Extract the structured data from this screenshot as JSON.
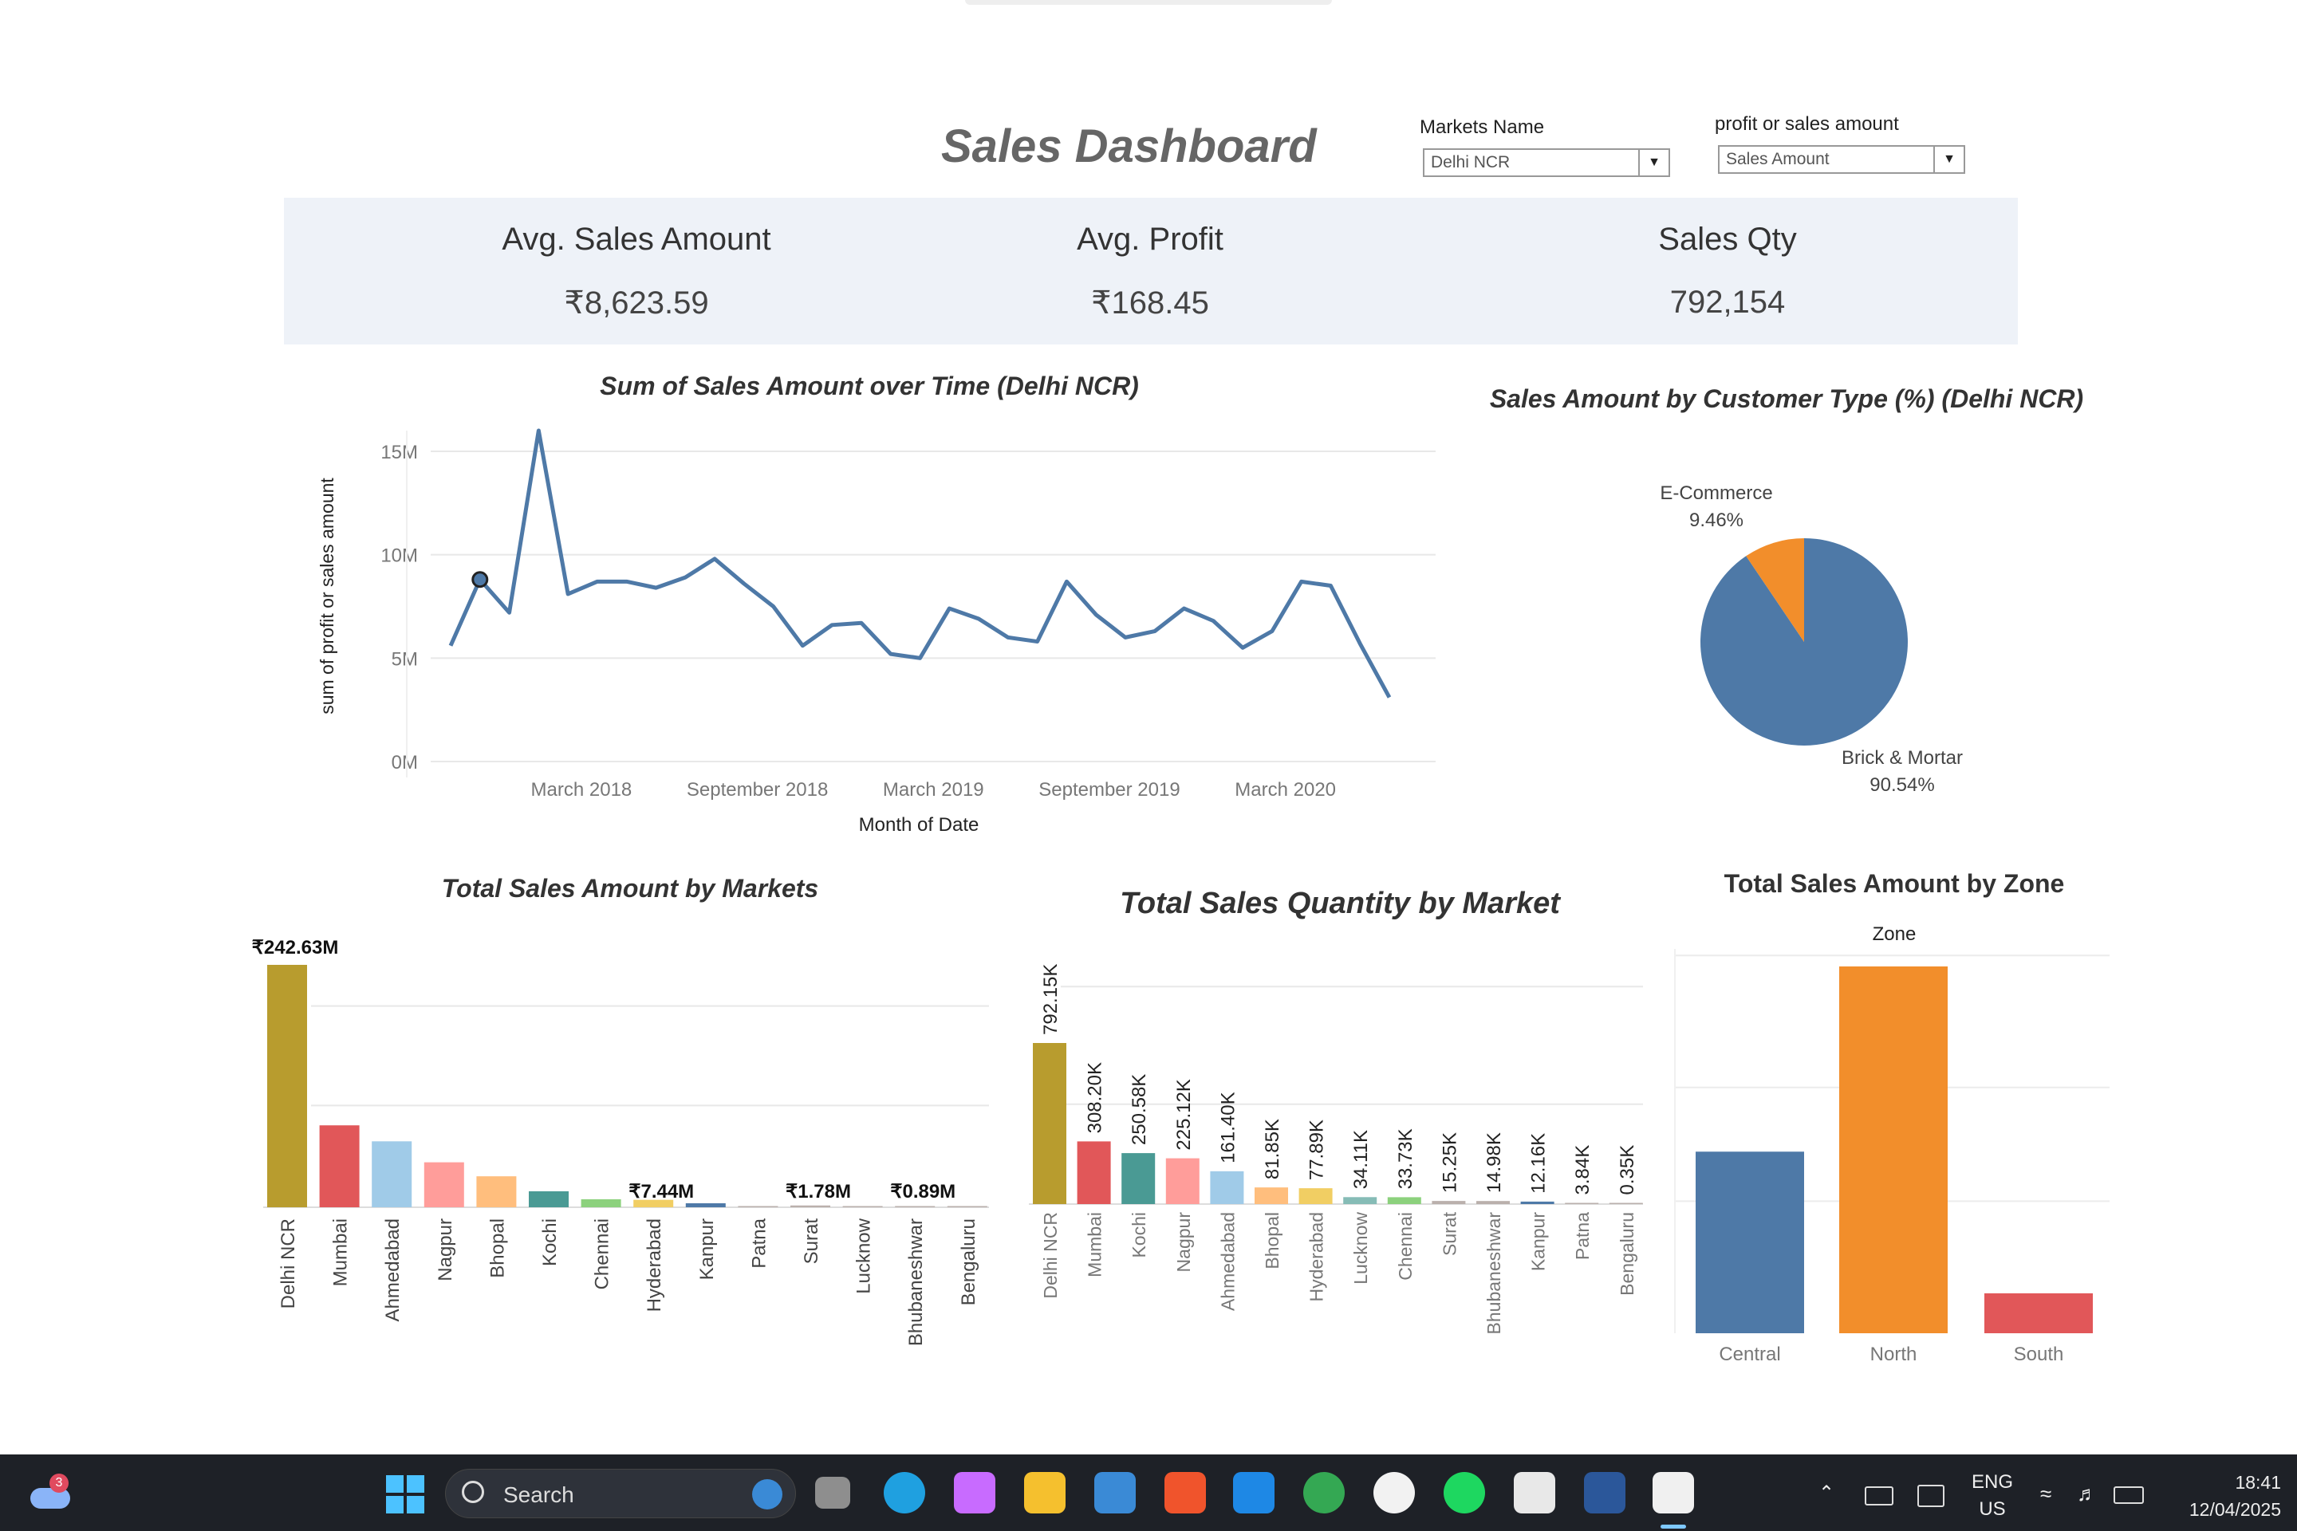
{
  "header": {
    "title": "Sales Dashboard",
    "markets_filter": {
      "label": "Markets Name",
      "value": "Delhi NCR"
    },
    "metric_filter": {
      "label": "profit or sales amount",
      "value": "Sales Amount"
    }
  },
  "kpis": [
    {
      "label": "Avg. Sales Amount",
      "value": "₹8,623.59"
    },
    {
      "label": "Avg. Profit",
      "value": "₹168.45"
    },
    {
      "label": "Sales Qty",
      "value": "792,154"
    }
  ],
  "colors": {
    "blue": "#4e79a7",
    "orange": "#f28e2b",
    "red": "#e15759",
    "teal": "#4a9a94",
    "olive": "#b89c2e",
    "lightblue": "#a0cbe8",
    "pink": "#ff9d9a",
    "lightorange": "#ffbe7d",
    "green": "#8cd17d",
    "yellow": "#f1ce63",
    "gray": "#bab0ac"
  },
  "chart_data": [
    {
      "type": "line",
      "title": "Sum of Sales Amount over Time (Delhi NCR)",
      "xlabel": "Month of Date",
      "ylabel": "sum of profit or sales amount",
      "y_ticks": [
        "0M",
        "5M",
        "10M",
        "15M"
      ],
      "x_ticks": [
        "March 2018",
        "September 2018",
        "March 2019",
        "September 2019",
        "March 2020"
      ],
      "ylim": [
        0,
        16000000
      ],
      "values": [
        5.6,
        8.8,
        7.2,
        16.0,
        8.1,
        8.7,
        8.7,
        8.4,
        8.9,
        9.8,
        8.6,
        7.5,
        5.6,
        6.6,
        6.7,
        5.2,
        5.0,
        7.4,
        6.9,
        6.0,
        5.8,
        8.7,
        7.1,
        6.0,
        6.3,
        7.4,
        6.8,
        5.5,
        6.3,
        8.7,
        8.5,
        5.7,
        3.1
      ],
      "highlight_index": 1,
      "grid": true
    },
    {
      "type": "pie",
      "title": "Sales Amount by Customer Type (%) (Delhi NCR)",
      "slices": [
        {
          "name": "Brick & Mortar",
          "value": 90.54,
          "label": "90.54%"
        },
        {
          "name": "E-Commerce",
          "value": 9.46,
          "label": "9.46%"
        }
      ]
    },
    {
      "type": "bar",
      "title": "Total Sales Amount by Markets",
      "categories": [
        "Delhi NCR",
        "Mumbai",
        "Ahmedabad",
        "Nagpur",
        "Bhopal",
        "Kochi",
        "Chennai",
        "Hyderabad",
        "Kanpur",
        "Patna",
        "Surat",
        "Lucknow",
        "Bhubaneshwar",
        "Bengaluru"
      ],
      "values": [
        242.63,
        82,
        66,
        45,
        31,
        16,
        8,
        7.44,
        4,
        1,
        1.78,
        0.5,
        0.89,
        0.2
      ],
      "data_labels": [
        {
          "index": 0,
          "text": "₹242.63M"
        },
        {
          "index": 7,
          "text": "₹7.44M"
        },
        {
          "index": 10,
          "text": "₹1.78M"
        },
        {
          "index": 12,
          "text": "₹0.89M"
        }
      ],
      "ylim": [
        0,
        242.63
      ],
      "grid": true
    },
    {
      "type": "bar",
      "title": "Total Sales Quantity by Market",
      "categories": [
        "Delhi NCR",
        "Mumbai",
        "Kochi",
        "Nagpur",
        "Ahmedabad",
        "Bhopal",
        "Hyderabad",
        "Lucknow",
        "Chennai",
        "Surat",
        "Bhubaneshwar",
        "Kanpur",
        "Patna",
        "Bengaluru"
      ],
      "values": [
        792.15,
        308.2,
        250.58,
        225.12,
        161.4,
        81.85,
        77.89,
        34.11,
        33.73,
        15.25,
        14.98,
        12.16,
        3.84,
        0.35
      ],
      "data_labels": [
        "792.15K",
        "308.20K",
        "250.58K",
        "225.12K",
        "161.40K",
        "81.85K",
        "77.89K",
        "34.11K",
        "33.73K",
        "15.25K",
        "14.98K",
        "12.16K",
        "3.84K",
        "0.35K"
      ],
      "ylim": [
        0,
        792.15
      ],
      "grid": true
    },
    {
      "type": "bar",
      "title": "Total Sales Amount by Zone",
      "subtitle": "Zone",
      "categories": [
        "Central",
        "North",
        "South"
      ],
      "values": [
        1.0,
        2.02,
        0.22
      ],
      "grid": true
    }
  ],
  "taskbar": {
    "weather_badge": "3",
    "search_placeholder": "Search",
    "lang": "ENG",
    "region": "US",
    "time": "18:41",
    "date": "12/04/2025",
    "icons": [
      "windows-start-icon",
      "task-view-icon",
      "edge-icon",
      "copilot-icon",
      "file-explorer-icon",
      "store-icon",
      "brave-icon",
      "vscode-icon",
      "chrome-icon",
      "github-icon",
      "spotify-icon",
      "tableau-icon",
      "word-icon",
      "snipping-tool-icon"
    ]
  }
}
